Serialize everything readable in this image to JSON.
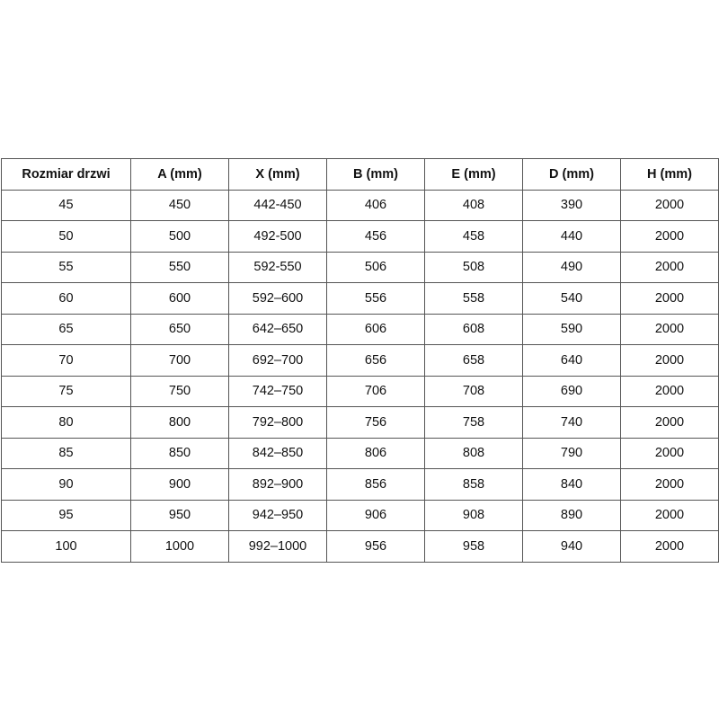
{
  "headers": [
    "Rozmiar drzwi",
    "A (mm)",
    "X (mm)",
    "B (mm)",
    "E (mm)",
    "D (mm)",
    "H (mm)"
  ],
  "rows": [
    [
      "45",
      "450",
      "442-450",
      "406",
      "408",
      "390",
      "2000"
    ],
    [
      "50",
      "500",
      "492-500",
      "456",
      "458",
      "440",
      "2000"
    ],
    [
      "55",
      "550",
      "592-550",
      "506",
      "508",
      "490",
      "2000"
    ],
    [
      "60",
      "600",
      "592–600",
      "556",
      "558",
      "540",
      "2000"
    ],
    [
      "65",
      "650",
      "642–650",
      "606",
      "608",
      "590",
      "2000"
    ],
    [
      "70",
      "700",
      "692–700",
      "656",
      "658",
      "640",
      "2000"
    ],
    [
      "75",
      "750",
      "742–750",
      "706",
      "708",
      "690",
      "2000"
    ],
    [
      "80",
      "800",
      "792–800",
      "756",
      "758",
      "740",
      "2000"
    ],
    [
      "85",
      "850",
      "842–850",
      "806",
      "808",
      "790",
      "2000"
    ],
    [
      "90",
      "900",
      "892–900",
      "856",
      "858",
      "840",
      "2000"
    ],
    [
      "95",
      "950",
      "942–950",
      "906",
      "908",
      "890",
      "2000"
    ],
    [
      "100",
      "1000",
      "992–1000",
      "956",
      "958",
      "940",
      "2000"
    ]
  ]
}
